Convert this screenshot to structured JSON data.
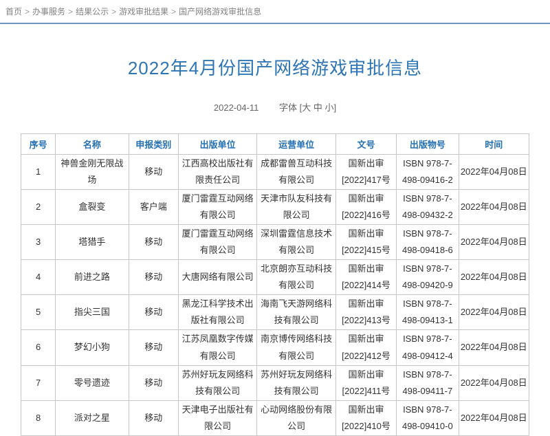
{
  "breadcrumb": {
    "separator": ">",
    "items": [
      "首页",
      "办事服务",
      "结果公示",
      "游戏审批结果",
      "国产网络游戏审批信息"
    ]
  },
  "header": {
    "title": "2022年4月份国产网络游戏审批信息",
    "date": "2022-04-11",
    "font_control": "字体 [大 中 小]"
  },
  "colors": {
    "accent_blue": "#2e75b6",
    "table_header_blue": "#2470b3",
    "divider_blue": "#6f94c5",
    "border_gray": "#c6c6c6"
  },
  "table": {
    "columns": [
      "序号",
      "名称",
      "申报类别",
      "出版单位",
      "运营单位",
      "文号",
      "出版物号",
      "时间"
    ],
    "rows": [
      [
        "1",
        "神兽金刚无限战场",
        "移动",
        "江西高校出版社有限责任公司",
        "成都雷兽互动科技有限公司",
        "国新出审 [2022]417号",
        "ISBN 978-7-498-09416-2",
        "2022年04月08日"
      ],
      [
        "2",
        "盒裂变",
        "客户端",
        "厦门雷霆互动网络有限公司",
        "天津市队友科技有限公司",
        "国新出审 [2022]416号",
        "ISBN 978-7-498-09432-2",
        "2022年04月08日"
      ],
      [
        "3",
        "塔猎手",
        "移动",
        "厦门雷霆互动网络有限公司",
        "深圳雷霆信息技术有限公司",
        "国新出审 [2022]415号",
        "ISBN 978-7-498-09418-6",
        "2022年04月08日"
      ],
      [
        "4",
        "前进之路",
        "移动",
        "大唐网络有限公司",
        "北京朗亦互动科技有限公司",
        "国新出审 [2022]414号",
        "ISBN 978-7-498-09420-9",
        "2022年04月08日"
      ],
      [
        "5",
        "指尖三国",
        "移动",
        "黑龙江科学技术出版社有限公司",
        "海南飞天游网络科技有限公司",
        "国新出审 [2022]413号",
        "ISBN 978-7-498-09413-1",
        "2022年04月08日"
      ],
      [
        "6",
        "梦幻小狗",
        "移动",
        "江苏凤凰数字传媒有限公司",
        "南京博传网络科技有限公司",
        "国新出审 [2022]412号",
        "ISBN 978-7-498-09412-4",
        "2022年04月08日"
      ],
      [
        "7",
        "零号遗迹",
        "移动",
        "苏州好玩友网络科技有限公司",
        "苏州好玩友网络科技有限公司",
        "国新出审 [2022]411号",
        "ISBN 978-7-498-09411-7",
        "2022年04月08日"
      ],
      [
        "8",
        "派对之星",
        "移动",
        "天津电子出版社有限公司",
        "心动网络股份有限公司",
        "国新出审 [2022]410号",
        "ISBN 978-7-498-09410-0",
        "2022年04月08日"
      ]
    ]
  }
}
